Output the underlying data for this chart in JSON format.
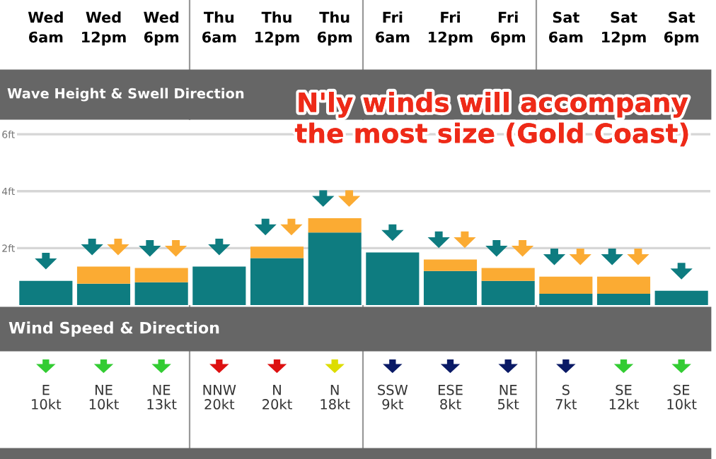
{
  "chart_data": {
    "type": "bar",
    "stacked": true,
    "title": "Wave Height & Swell Direction",
    "subtitle": "Wind Speed & Direction",
    "categories": [
      "Wed\n6am",
      "Wed\n12pm",
      "Wed\n6pm",
      "Thu\n6am",
      "Thu\n12pm",
      "Thu\n6pm",
      "Fri\n6am",
      "Fri\n12pm",
      "Fri\n6pm",
      "Sat\n6am",
      "Sat\n12pm",
      "Sat\n6pm"
    ],
    "series": [
      {
        "color": "#0e7c80",
        "values": [
          0.85,
          0.75,
          0.8,
          1.35,
          1.65,
          2.55,
          1.85,
          1.2,
          0.85,
          0.4,
          0.4,
          0.5
        ]
      },
      {
        "color": "#fbab33",
        "values": [
          null,
          0.6,
          0.5,
          null,
          0.4,
          0.5,
          null,
          0.4,
          0.45,
          0.6,
          0.6,
          null
        ]
      }
    ],
    "ylim": [
      0,
      6.5
    ],
    "yticks": [
      {
        "value": 2,
        "label": "2ft"
      },
      {
        "value": 4,
        "label": "4ft"
      },
      {
        "value": 6,
        "label": "6ft"
      }
    ],
    "grid": "y",
    "annotations": [
      "N'ly winds will accompany\nthe most size (Gold Coast)",
      "E\n10kt",
      "NE\n10kt",
      "NE\n13kt",
      "NNW\n20kt",
      "N\n20kt",
      "N\n18kt",
      "SSW\n9kt",
      "ESE\n8kt",
      "NE\n5kt",
      "S\n7kt",
      "SE\n12kt",
      "SE\n10kt"
    ]
  }
}
